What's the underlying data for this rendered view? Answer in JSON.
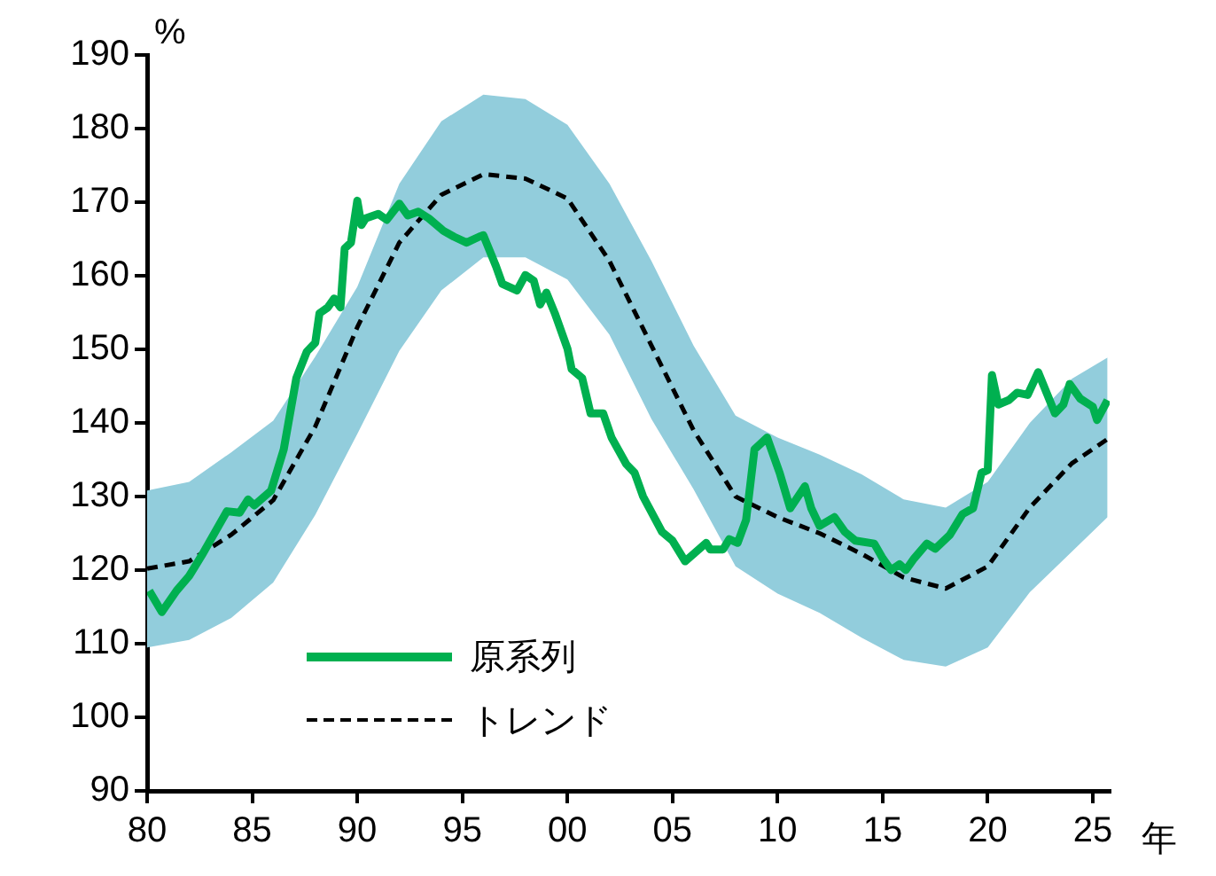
{
  "chart_data": {
    "type": "line",
    "xlabel": "年",
    "ylabel": "%",
    "xlim": [
      1980,
      2025.8
    ],
    "ylim": [
      90,
      190
    ],
    "xticks": [
      {
        "value": 1980,
        "label": "80"
      },
      {
        "value": 1985,
        "label": "85"
      },
      {
        "value": 1990,
        "label": "90"
      },
      {
        "value": 1995,
        "label": "95"
      },
      {
        "value": 2000,
        "label": "00"
      },
      {
        "value": 2005,
        "label": "05"
      },
      {
        "value": 2010,
        "label": "10"
      },
      {
        "value": 2015,
        "label": "15"
      },
      {
        "value": 2020,
        "label": "20"
      },
      {
        "value": 2025,
        "label": "25"
      }
    ],
    "yticks": [
      90,
      100,
      110,
      120,
      130,
      140,
      150,
      160,
      170,
      180,
      190
    ],
    "grid": false,
    "legend": "bottom left",
    "marker": "none",
    "series": [
      {
        "name": "原系列",
        "color": "#00b050",
        "line_style": "solid",
        "x": [
          1980.1,
          1980.7,
          1981.4,
          1982,
          1982.6,
          1983.8,
          1984.4,
          1984.8,
          1985.1,
          1985.9,
          1986.5,
          1987.1,
          1987.6,
          1988,
          1988.2,
          1988.6,
          1988.9,
          1989.2,
          1989.4,
          1989.7,
          1990,
          1990.2,
          1990.4,
          1991,
          1991.4,
          1992,
          1992.4,
          1992.9,
          1993.4,
          1994.1,
          1994.6,
          1995.2,
          1995.8,
          1996,
          1996.6,
          1996.9,
          1997.6,
          1998,
          1998.4,
          1998.7,
          1999,
          1999.4,
          2000,
          2000.2,
          2000.7,
          2001.1,
          2001.7,
          2002.1,
          2002.8,
          2003.2,
          2003.6,
          2004.5,
          2005,
          2005.6,
          2006.6,
          2006.8,
          2007.4,
          2007.7,
          2008.1,
          2008.5,
          2008.9,
          2009.5,
          2010.1,
          2010.6,
          2011.3,
          2011.6,
          2012,
          2012.7,
          2013.2,
          2013.7,
          2014.6,
          2015,
          2015.4,
          2015.8,
          2016.1,
          2016.5,
          2017.1,
          2017.5,
          2018.2,
          2018.8,
          2019.3,
          2019.7,
          2020,
          2020.2,
          2020.5,
          2021,
          2021.4,
          2021.9,
          2022.4,
          2023.2,
          2023.6,
          2023.9,
          2024.4,
          2025,
          2025.2,
          2025.7
        ],
        "values": [
          117.2,
          114.3,
          117.2,
          119.2,
          122,
          128,
          127.8,
          129.6,
          128.8,
          130.8,
          136.4,
          146.1,
          149.7,
          150.9,
          154.9,
          155.7,
          156.9,
          155.7,
          163.7,
          164.5,
          170.2,
          166.9,
          167.8,
          168.4,
          167.6,
          169.8,
          168.2,
          168.7,
          167.8,
          166.1,
          165.3,
          164.5,
          165.3,
          165.5,
          161.3,
          158.9,
          158,
          160.1,
          159.3,
          156.1,
          157.7,
          154.9,
          150.1,
          147.3,
          146.1,
          141.3,
          141.3,
          138,
          134.4,
          133.2,
          130,
          125.2,
          124,
          121.2,
          123.7,
          122.8,
          122.8,
          124.2,
          123.7,
          126.8,
          136.4,
          138,
          133.2,
          128.4,
          131.4,
          128.4,
          126,
          127.2,
          125.2,
          124,
          123.6,
          121.6,
          120,
          120.8,
          120,
          121.6,
          123.6,
          122.9,
          124.8,
          127.6,
          128.4,
          133.2,
          133.6,
          146.5,
          142.5,
          143.1,
          144.1,
          143.8,
          146.9,
          141.3,
          142.5,
          145.3,
          143.3,
          142.2,
          140.4,
          143.1
        ]
      },
      {
        "name": "トレンド",
        "color": "#000000",
        "line_style": "dashed",
        "x": [
          1980,
          1982,
          1984,
          1986,
          1988,
          1990,
          1992,
          1994,
          1996,
          1998,
          2000,
          2002,
          2004,
          2006,
          2008,
          2010,
          2012,
          2014,
          2016,
          2018,
          2020,
          2022,
          2024,
          2025.7
        ],
        "values": [
          120.2,
          121.2,
          124.8,
          129.5,
          139.5,
          153,
          164.5,
          171,
          173.8,
          173.2,
          170.5,
          162,
          150.5,
          139,
          130,
          127.2,
          125,
          122.2,
          119,
          117.5,
          120.5,
          128.5,
          134.5,
          137.8
        ],
        "upper": [
          130.8,
          132,
          136,
          140.3,
          149,
          158.5,
          172.5,
          181,
          184.6,
          184,
          180.5,
          172.5,
          162,
          150.5,
          141,
          138,
          135.7,
          133,
          129.6,
          128.5,
          132,
          140,
          146,
          148.9
        ],
        "lower": [
          109.5,
          110.5,
          113.5,
          118.3,
          127.5,
          138.5,
          149.8,
          158,
          162.5,
          162.5,
          159.5,
          152,
          140.5,
          131,
          120.5,
          116.8,
          114.2,
          110.8,
          107.8,
          106.9,
          109.5,
          117,
          122.5,
          127.2
        ]
      }
    ]
  }
}
